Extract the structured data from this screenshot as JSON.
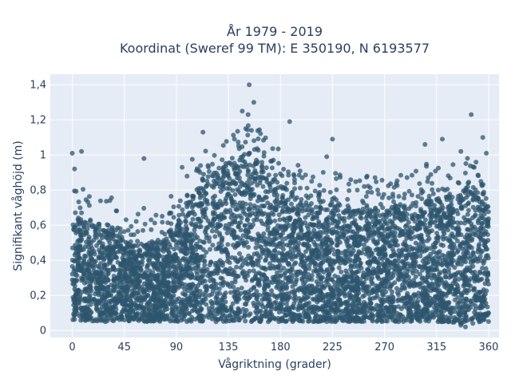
{
  "chart_data": {
    "type": "scatter",
    "title_line1": "År 1979 - 2019",
    "title_line2": "Koordinat (Sweref 99 TM): E 350190, N 6193577",
    "xlabel": "Vågriktning (grader)",
    "ylabel": "Signifikant våghöjd (m)",
    "xlim": [
      -19,
      369
    ],
    "ylim": [
      -0.04,
      1.46
    ],
    "xticks": [
      0,
      45,
      90,
      135,
      180,
      225,
      270,
      315,
      360
    ],
    "yticks": [
      0,
      0.2,
      0.4,
      0.6,
      0.8,
      1,
      1.2,
      1.4
    ],
    "ytick_labels": [
      "0",
      "0,2",
      "0,4",
      "0,6",
      "0,8",
      "1",
      "1,2",
      "1,4"
    ],
    "grid": true,
    "legend": "none",
    "colors": {
      "marker": "#2e566e",
      "plot_bg": "#e5ecf6",
      "grid": "#ffffff",
      "text": "#2a3f5f"
    },
    "envelope_dense": {
      "x": [
        0,
        10,
        20,
        30,
        45,
        60,
        75,
        90,
        100,
        110,
        120,
        135,
        150,
        160,
        170,
        180,
        200,
        225,
        250,
        270,
        290,
        300,
        315,
        330,
        345,
        360
      ],
      "y_min": [
        0.06,
        0.05,
        0.05,
        0.05,
        0.05,
        0.05,
        0.05,
        0.05,
        0.05,
        0.05,
        0.05,
        0.05,
        0.05,
        0.05,
        0.05,
        0.05,
        0.05,
        0.05,
        0.05,
        0.05,
        0.05,
        0.05,
        0.05,
        0.04,
        0.04,
        0.05
      ],
      "y_max": [
        0.63,
        0.62,
        0.58,
        0.56,
        0.5,
        0.48,
        0.5,
        0.6,
        0.72,
        0.82,
        0.87,
        0.95,
        1.0,
        0.96,
        0.9,
        0.82,
        0.72,
        0.68,
        0.68,
        0.68,
        0.7,
        0.72,
        0.74,
        0.76,
        0.78,
        0.7
      ]
    },
    "notable_points": [
      {
        "x": 153,
        "y": 1.4
      },
      {
        "x": 157,
        "y": 1.3
      },
      {
        "x": 147,
        "y": 1.25
      },
      {
        "x": 152,
        "y": 1.23
      },
      {
        "x": 345,
        "y": 1.23
      },
      {
        "x": 188,
        "y": 1.19
      },
      {
        "x": 0,
        "y": 1.01
      },
      {
        "x": 8,
        "y": 1.02
      },
      {
        "x": 113,
        "y": 1.13
      },
      {
        "x": 150,
        "y": 1.15
      },
      {
        "x": 155,
        "y": 1.14
      },
      {
        "x": 225,
        "y": 1.09
      },
      {
        "x": 320,
        "y": 1.09
      },
      {
        "x": 355,
        "y": 1.1
      },
      {
        "x": 358,
        "y": 1.01
      },
      {
        "x": 62,
        "y": 0.98
      },
      {
        "x": 95,
        "y": 0.93
      },
      {
        "x": 2,
        "y": 0.92
      },
      {
        "x": 305,
        "y": 1.06
      },
      {
        "x": 336,
        "y": 1.02
      },
      {
        "x": 220,
        "y": 0.99
      },
      {
        "x": 340,
        "y": 0.02
      },
      {
        "x": 336,
        "y": 0.03
      }
    ]
  }
}
